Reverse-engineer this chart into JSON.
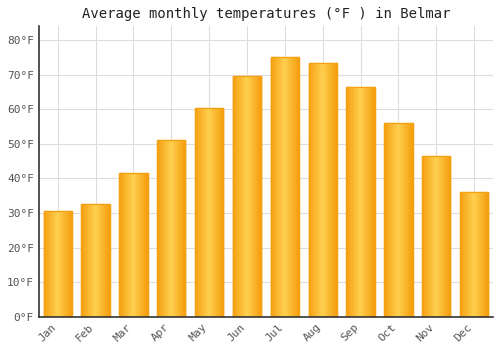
{
  "title": "Average monthly temperatures (°F ) in Belmar",
  "months": [
    "Jan",
    "Feb",
    "Mar",
    "Apr",
    "May",
    "Jun",
    "Jul",
    "Aug",
    "Sep",
    "Oct",
    "Nov",
    "Dec"
  ],
  "temperatures": [
    30.5,
    32.5,
    41.5,
    51.0,
    60.5,
    69.5,
    75.0,
    73.5,
    66.5,
    56.0,
    46.5,
    36.0
  ],
  "bar_color_center": "#FFD050",
  "bar_color_edge": "#F5A010",
  "background_color": "#FFFFFF",
  "grid_color": "#DDDDDD",
  "yticks": [
    0,
    10,
    20,
    30,
    40,
    50,
    60,
    70,
    80
  ],
  "ylim": [
    0,
    84
  ],
  "ylabel_format": "{0}°F",
  "title_fontsize": 10,
  "tick_fontsize": 8,
  "font_family": "monospace",
  "spine_color": "#333333",
  "tick_color": "#555555"
}
